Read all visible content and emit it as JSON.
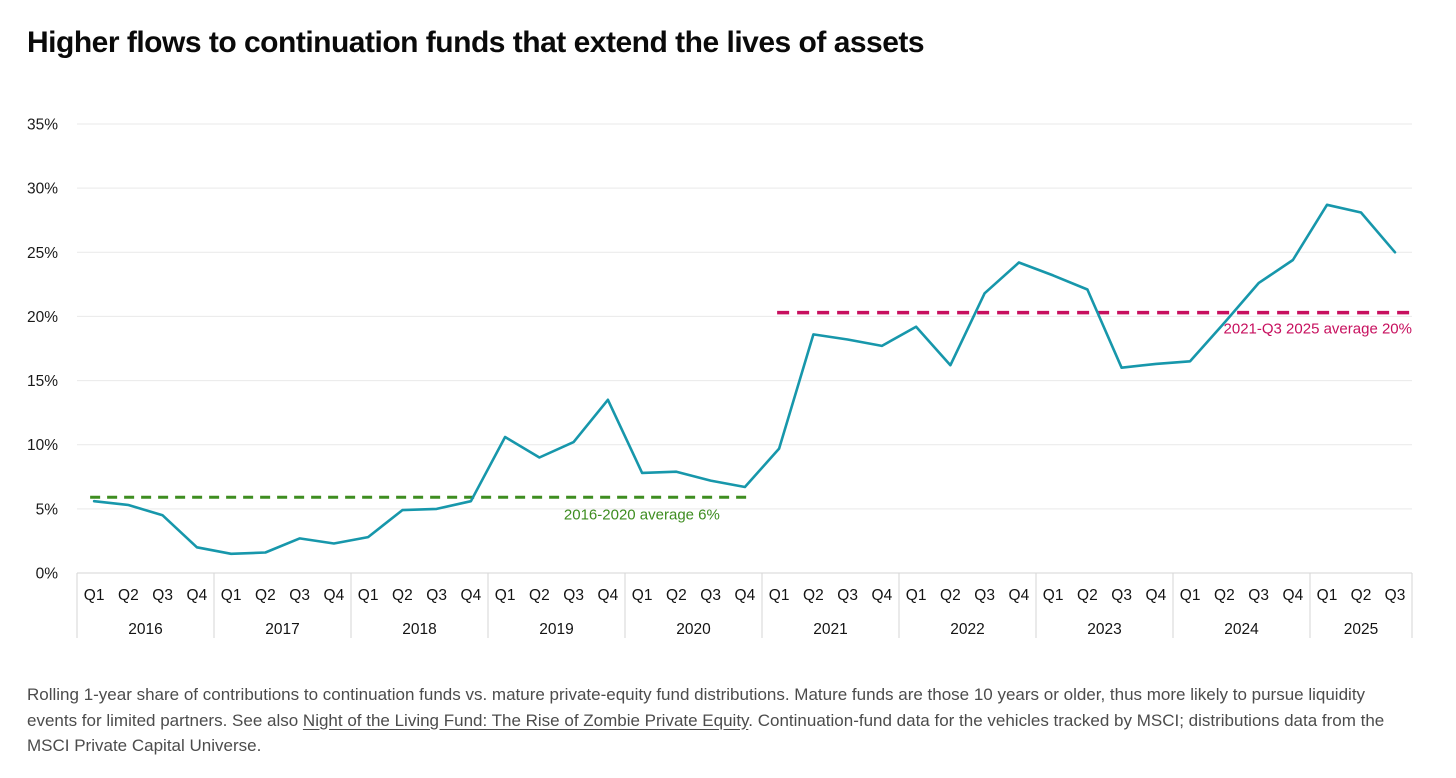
{
  "page": {
    "title": "Higher flows to continuation funds that extend the lives of assets"
  },
  "footnote": {
    "before_link": "Rolling 1-year share of contributions to continuation funds vs. mature private-equity fund distributions. Mature funds are those 10 years or older, thus more likely to pursue liquidity events for limited partners. See also ",
    "link_text": "Night of the Living Fund: The Rise of Zombie Private Equity",
    "after_link": ". Continuation-fund data for the vehicles tracked by MSCI; distributions data from the MSCI Private Capital Universe."
  },
  "chart_data": {
    "type": "line",
    "title": "Higher flows to continuation funds that extend the lives of assets",
    "ylim": [
      0,
      35
    ],
    "grid": true,
    "y_ticks": [
      {
        "value": 35,
        "label": "35%"
      },
      {
        "value": 30,
        "label": "30%"
      },
      {
        "value": 25,
        "label": "25%"
      },
      {
        "value": 20,
        "label": "20%"
      },
      {
        "value": 15,
        "label": "15%"
      },
      {
        "value": 10,
        "label": "10%"
      },
      {
        "value": 5,
        "label": "5%"
      },
      {
        "value": 0,
        "label": "0%"
      }
    ],
    "series_name": "Rolling 1-year share of contributions to continuation funds vs. mature private-equity fund distributions",
    "series_color": "#1797ab",
    "years": [
      {
        "label": "2016",
        "quarters": [
          "Q1",
          "Q2",
          "Q3",
          "Q4"
        ],
        "values": [
          5.6,
          5.3,
          4.5,
          2.0
        ]
      },
      {
        "label": "2017",
        "quarters": [
          "Q1",
          "Q2",
          "Q3",
          "Q4"
        ],
        "values": [
          1.5,
          1.6,
          2.7,
          2.3
        ]
      },
      {
        "label": "2018",
        "quarters": [
          "Q1",
          "Q2",
          "Q3",
          "Q4"
        ],
        "values": [
          2.8,
          4.9,
          5.0,
          5.6
        ]
      },
      {
        "label": "2019",
        "quarters": [
          "Q1",
          "Q2",
          "Q3",
          "Q4"
        ],
        "values": [
          10.6,
          9.0,
          10.2,
          13.5
        ]
      },
      {
        "label": "2020",
        "quarters": [
          "Q1",
          "Q2",
          "Q3",
          "Q4"
        ],
        "values": [
          7.8,
          7.9,
          7.2,
          6.7
        ]
      },
      {
        "label": "2021",
        "quarters": [
          "Q1",
          "Q2",
          "Q3",
          "Q4"
        ],
        "values": [
          9.7,
          18.6,
          18.2,
          17.7
        ]
      },
      {
        "label": "2022",
        "quarters": [
          "Q1",
          "Q2",
          "Q3",
          "Q4"
        ],
        "values": [
          19.2,
          16.2,
          21.8,
          24.2
        ]
      },
      {
        "label": "2023",
        "quarters": [
          "Q1",
          "Q2",
          "Q3",
          "Q4"
        ],
        "values": [
          23.2,
          22.1,
          16.0,
          16.3
        ]
      },
      {
        "label": "2024",
        "quarters": [
          "Q1",
          "Q2",
          "Q3",
          "Q4"
        ],
        "values": [
          16.5,
          19.5,
          22.6,
          24.4
        ]
      },
      {
        "label": "2025",
        "quarters": [
          "Q1",
          "Q2",
          "Q3"
        ],
        "values": [
          28.7,
          28.1,
          25.0
        ]
      }
    ],
    "average_lines": [
      {
        "label": "2016-2020 average 6%",
        "value": 5.9,
        "display_value": "6%",
        "start": {
          "year": "2016",
          "quarter": "Q1"
        },
        "end": {
          "year": "2020",
          "quarter": "Q4"
        },
        "color": "#3e8d20"
      },
      {
        "label": "2021-Q3 2025 average 20%",
        "value": 20.3,
        "display_value": "20%",
        "start": {
          "year": "2021",
          "quarter": "Q1"
        },
        "end": {
          "year": "2025",
          "quarter": "Q3"
        },
        "color": "#c70f5e"
      }
    ]
  }
}
